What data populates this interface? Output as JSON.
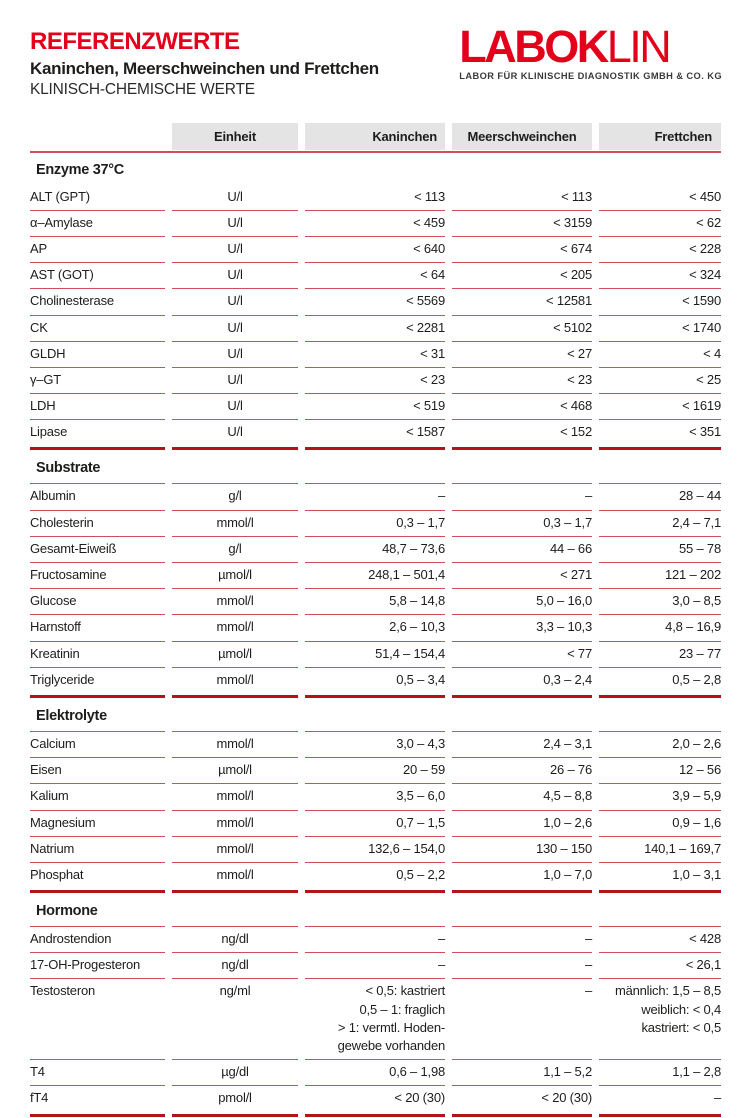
{
  "header": {
    "title": "REFERENZWERTE",
    "subtitle": "Kaninchen, Meerschweinchen und Frettchen",
    "subtitle2": "KLINISCH-CHEMISCHE WERTE",
    "logo": {
      "word_bold": "LABOK",
      "word_light": "LIN",
      "tagline": "LABOR FÜR KLINISCHE DIAGNOSTIK GMBH & CO. KG"
    }
  },
  "colors": {
    "brand_red": "#e2001a",
    "line_red": "#cf4e57",
    "line_red_thick": "#b5121f",
    "header_gray": "#e4e4e4",
    "text": "#1d1d1b"
  },
  "table": {
    "columns": [
      "",
      "Einheit",
      "Kaninchen",
      "Meerschweinchen",
      "Frettchen"
    ],
    "sections": [
      {
        "title": "Enzyme 37°C",
        "rule_after_title": false,
        "rows": [
          {
            "name": "ALT (GPT)",
            "unit": "U/l",
            "kaninchen": "< 113",
            "meerschweinchen": "< 113",
            "frettchen": "< 450"
          },
          {
            "name": "α–Amylase",
            "unit": "U/l",
            "kaninchen": "< 459",
            "meerschweinchen": "< 3159",
            "frettchen": "< 62"
          },
          {
            "name": "AP",
            "unit": "U/l",
            "kaninchen": "< 640",
            "meerschweinchen": "< 674",
            "frettchen": "< 228"
          },
          {
            "name": "AST (GOT)",
            "unit": "U/l",
            "kaninchen": "< 64",
            "meerschweinchen": "< 205",
            "frettchen": "< 324"
          },
          {
            "name": "Cholinesterase",
            "unit": "U/l",
            "kaninchen": "< 5569",
            "meerschweinchen": "< 12581",
            "frettchen": "< 1590"
          },
          {
            "name": "CK",
            "unit": "U/l",
            "kaninchen": "< 2281",
            "meerschweinchen": "< 5102",
            "frettchen": "< 1740"
          },
          {
            "name": "GLDH",
            "unit": "U/l",
            "kaninchen": "< 31",
            "meerschweinchen": "< 27",
            "frettchen": "< 4"
          },
          {
            "name": "γ–GT",
            "unit": "U/l",
            "kaninchen": "< 23",
            "meerschweinchen": "< 23",
            "frettchen": "< 25"
          },
          {
            "name": "LDH",
            "unit": "U/l",
            "kaninchen": "< 519",
            "meerschweinchen": "< 468",
            "frettchen": "< 1619"
          },
          {
            "name": "Lipase",
            "unit": "U/l",
            "kaninchen": "< 1587",
            "meerschweinchen": "< 152",
            "frettchen": "< 351"
          }
        ]
      },
      {
        "title": "Substrate",
        "rule_after_title": true,
        "rows": [
          {
            "name": "Albumin",
            "unit": "g/l",
            "kaninchen": "–",
            "meerschweinchen": "–",
            "frettchen": "28 – 44"
          },
          {
            "name": "Cholesterin",
            "unit": "mmol/l",
            "kaninchen": "0,3 – 1,7",
            "meerschweinchen": "0,3 – 1,7",
            "frettchen": "2,4 – 7,1"
          },
          {
            "name": "Gesamt-Eiweiß",
            "unit": "g/l",
            "kaninchen": "48,7 – 73,6",
            "meerschweinchen": "44 – 66",
            "frettchen": "55 – 78"
          },
          {
            "name": "Fructosamine",
            "unit": "µmol/l",
            "kaninchen": "248,1 – 501,4",
            "meerschweinchen": "< 271",
            "frettchen": "121 – 202"
          },
          {
            "name": "Glucose",
            "unit": "mmol/l",
            "kaninchen": "5,8 – 14,8",
            "meerschweinchen": "5,0 – 16,0",
            "frettchen": "3,0 – 8,5"
          },
          {
            "name": "Harnstoff",
            "unit": "mmol/l",
            "kaninchen": "2,6 – 10,3",
            "meerschweinchen": "3,3 – 10,3",
            "frettchen": "4,8 – 16,9"
          },
          {
            "name": "Kreatinin",
            "unit": "µmol/l",
            "kaninchen": "51,4 – 154,4",
            "meerschweinchen": "< 77",
            "frettchen": "23 – 77"
          },
          {
            "name": "Triglyceride",
            "unit": "mmol/l",
            "kaninchen": "0,5 – 3,4",
            "meerschweinchen": "0,3 – 2,4",
            "frettchen": "0,5 – 2,8"
          }
        ]
      },
      {
        "title": "Elektrolyte",
        "rule_after_title": true,
        "rows": [
          {
            "name": "Calcium",
            "unit": "mmol/l",
            "kaninchen": "3,0 – 4,3",
            "meerschweinchen": "2,4 – 3,1",
            "frettchen": "2,0 – 2,6"
          },
          {
            "name": "Eisen",
            "unit": "µmol/l",
            "kaninchen": "20 – 59",
            "meerschweinchen": "26 – 76",
            "frettchen": "12 – 56"
          },
          {
            "name": "Kalium",
            "unit": "mmol/l",
            "kaninchen": "3,5 – 6,0",
            "meerschweinchen": "4,5 – 8,8",
            "frettchen": "3,9 – 5,9"
          },
          {
            "name": "Magnesium",
            "unit": "mmol/l",
            "kaninchen": "0,7 – 1,5",
            "meerschweinchen": "1,0 – 2,6",
            "frettchen": "0,9 – 1,6"
          },
          {
            "name": "Natrium",
            "unit": "mmol/l",
            "kaninchen": "132,6 – 154,0",
            "meerschweinchen": "130 – 150",
            "frettchen": "140,1 – 169,7"
          },
          {
            "name": "Phosphat",
            "unit": "mmol/l",
            "kaninchen": "0,5 – 2,2",
            "meerschweinchen": "1,0 – 7,0",
            "frettchen": "1,0 – 3,1"
          }
        ]
      },
      {
        "title": "Hormone",
        "rule_after_title": true,
        "rows": [
          {
            "name": "Androstendion",
            "unit": "ng/dl",
            "kaninchen": "–",
            "meerschweinchen": "–",
            "frettchen": "< 428"
          },
          {
            "name": "17-OH-Progesteron",
            "unit": "ng/dl",
            "kaninchen": "–",
            "meerschweinchen": "–",
            "frettchen": "< 26,1"
          },
          {
            "name": "Testosteron",
            "unit": "ng/ml",
            "kaninchen": "< 0,5: kastriert\n0,5 – 1: fraglich\n> 1: vermtl. Hoden-\ngewebe vorhanden",
            "meerschweinchen": "–",
            "frettchen": "männlich: 1,5 – 8,5\nweiblich: < 0,4\nkastriert: < 0,5"
          },
          {
            "name": "T4",
            "unit": "µg/dl",
            "kaninchen": "0,6 – 1,98",
            "meerschweinchen": "1,1 – 5,2",
            "frettchen": "1,1 – 2,8"
          },
          {
            "name": "fT4",
            "unit": "pmol/l",
            "kaninchen": "< 20 (30)",
            "meerschweinchen": "< 20 (30)",
            "frettchen": "–"
          }
        ]
      }
    ]
  }
}
